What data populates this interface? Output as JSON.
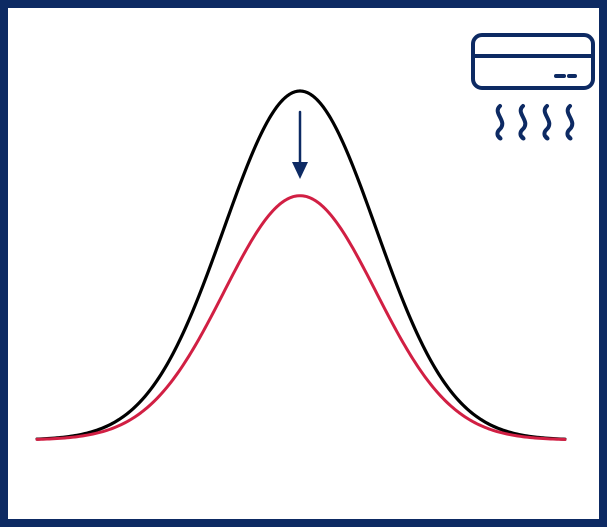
{
  "diagram": {
    "icon": "air-conditioner-icon",
    "colors": {
      "frame": "#0d2a63",
      "before_curve": "#000000",
      "after_curve": "#d11f43",
      "arrow": "#0d2a63",
      "icon": "#0d2a63"
    },
    "curves": [
      {
        "id": "before",
        "relative_peak": 1.0
      },
      {
        "id": "after",
        "relative_peak": 0.7
      }
    ],
    "arrow": {
      "direction": "down"
    }
  }
}
